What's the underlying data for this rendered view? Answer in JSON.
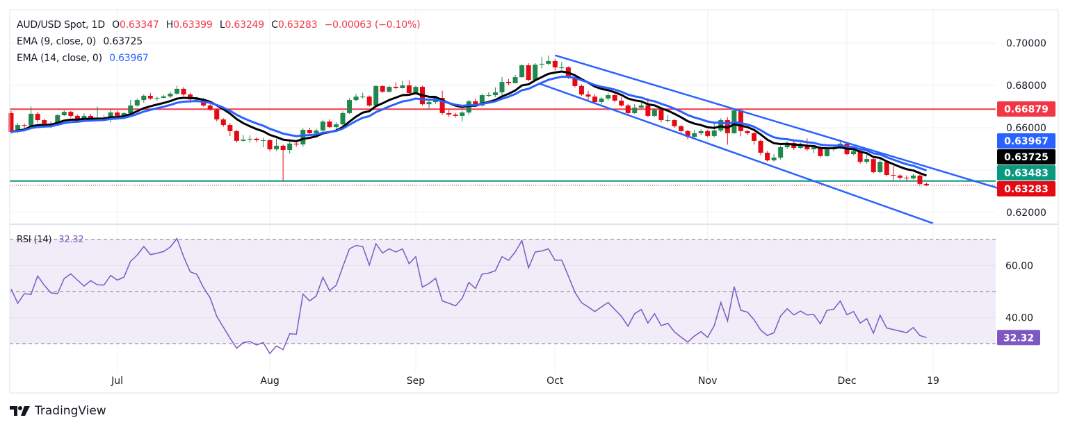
{
  "header": {
    "symbol": "AUD/USD Spot, 1D",
    "open_label": "O",
    "open": "0.63347",
    "high_label": "H",
    "high": "0.63399",
    "low_label": "L",
    "low": "0.63249",
    "close_label": "C",
    "close": "0.63283",
    "change": "−0.00063 (−0.10%)",
    "ema9_label": "EMA (9, close, 0)",
    "ema9_value": "0.63725",
    "ema14_label": "EMA (14, close, 0)",
    "ema14_value": "0.63967"
  },
  "rsi_legend": {
    "label": "RSI (14)",
    "value": "32.32"
  },
  "branding": {
    "logo_text": "TradingView"
  },
  "colors": {
    "up": "#22874f",
    "down": "#e50914",
    "ema9": "#000000",
    "ema14": "#2962ff",
    "resistance": "#f23645",
    "support": "#089981",
    "last_price": "#e50914",
    "channel": "#2962ff",
    "rsi": "#7e57c2",
    "rsi_band": "#f0ecf8"
  },
  "chart_data": [
    {
      "type": "candlestick",
      "title": "AUD/USD Spot, 1D",
      "ylim": [
        0.612,
        0.706
      ],
      "y_ticks": [
        {
          "value": 0.7,
          "label": "0.70000"
        },
        {
          "value": 0.68,
          "label": "0.68000"
        },
        {
          "value": 0.66,
          "label": "0.66000"
        },
        {
          "value": 0.62,
          "label": "0.62000"
        }
      ],
      "x_ticks": [
        {
          "bar": 16,
          "label": "Jul"
        },
        {
          "bar": 39,
          "label": "Aug"
        },
        {
          "bar": 61,
          "label": "Sep"
        },
        {
          "bar": 82,
          "label": "Oct"
        },
        {
          "bar": 105,
          "label": "Nov"
        },
        {
          "bar": 126,
          "label": "Dec"
        },
        {
          "bar": 139,
          "label": "19"
        }
      ],
      "grid": true,
      "indicators": [
        {
          "name": "EMA",
          "length": 9,
          "source": "close",
          "last": 0.63725,
          "color_key": "ema9"
        },
        {
          "name": "EMA",
          "length": 14,
          "source": "close",
          "last": 0.63967,
          "color_key": "ema14"
        }
      ],
      "horizontal_lines": [
        {
          "price": 0.66879,
          "label": "0.66879",
          "color_key": "resistance",
          "style": "solid"
        },
        {
          "price": 0.63483,
          "label": "0.63483",
          "color_key": "support",
          "style": "solid"
        },
        {
          "price": 0.63283,
          "label": "0.63283",
          "color_key": "last_price",
          "style": "dotted"
        }
      ],
      "trend_lines": [
        {
          "name": "channel-upper",
          "points": [
            [
              82,
              0.6942
            ],
            [
              149.5,
              0.6308
            ]
          ]
        },
        {
          "name": "channel-lower",
          "points": [
            [
              79.5,
              0.681
            ],
            [
              139,
              0.6148
            ]
          ]
        }
      ],
      "price_badges": [
        {
          "label": "0.66879",
          "color_key": "resistance"
        },
        {
          "label": "0.63967",
          "color_key": "ema14"
        },
        {
          "label": "0.63725",
          "color_key": "ema9"
        },
        {
          "label": "0.63483",
          "color_key": "support"
        },
        {
          "label": "0.63283",
          "color_key": "last_price"
        }
      ],
      "candles_format": [
        "open",
        "high",
        "low",
        "close"
      ],
      "candles": [
        [
          0.6669,
          0.668,
          0.6572,
          0.658
        ],
        [
          0.658,
          0.6622,
          0.6575,
          0.6613
        ],
        [
          0.6613,
          0.662,
          0.6598,
          0.661
        ],
        [
          0.661,
          0.67,
          0.6605,
          0.6666
        ],
        [
          0.6666,
          0.6675,
          0.6625,
          0.6636
        ],
        [
          0.6636,
          0.6642,
          0.66,
          0.662
        ],
        [
          0.662,
          0.663,
          0.6598,
          0.6617
        ],
        [
          0.6617,
          0.6665,
          0.6612,
          0.6659
        ],
        [
          0.6659,
          0.6682,
          0.6655,
          0.6675
        ],
        [
          0.6675,
          0.668,
          0.6648,
          0.6656
        ],
        [
          0.6656,
          0.6662,
          0.663,
          0.6639
        ],
        [
          0.6639,
          0.6668,
          0.6635,
          0.6656
        ],
        [
          0.6656,
          0.6665,
          0.6638,
          0.6643
        ],
        [
          0.6643,
          0.67,
          0.664,
          0.6646
        ],
        [
          0.6646,
          0.666,
          0.664,
          0.6646
        ],
        [
          0.6646,
          0.6685,
          0.6625,
          0.6672
        ],
        [
          0.6672,
          0.668,
          0.665,
          0.6656
        ],
        [
          0.6656,
          0.6673,
          0.664,
          0.6669
        ],
        [
          0.6669,
          0.6732,
          0.666,
          0.6705
        ],
        [
          0.6705,
          0.6738,
          0.67,
          0.6731
        ],
        [
          0.6731,
          0.6758,
          0.6718,
          0.6751
        ],
        [
          0.6751,
          0.6764,
          0.6732,
          0.6738
        ],
        [
          0.6738,
          0.6748,
          0.6728,
          0.6741
        ],
        [
          0.6741,
          0.6755,
          0.6738,
          0.6748
        ],
        [
          0.6748,
          0.677,
          0.674,
          0.6761
        ],
        [
          0.6761,
          0.6798,
          0.6755,
          0.6784
        ],
        [
          0.6784,
          0.6792,
          0.675,
          0.6757
        ],
        [
          0.6757,
          0.6765,
          0.6718,
          0.6734
        ],
        [
          0.6734,
          0.6746,
          0.672,
          0.6734
        ],
        [
          0.6734,
          0.674,
          0.67,
          0.6705
        ],
        [
          0.6705,
          0.6712,
          0.668,
          0.6685
        ],
        [
          0.6685,
          0.6692,
          0.663,
          0.6639
        ],
        [
          0.6639,
          0.6645,
          0.6605,
          0.6613
        ],
        [
          0.6613,
          0.6622,
          0.656,
          0.6584
        ],
        [
          0.6584,
          0.659,
          0.653,
          0.6538
        ],
        [
          0.6538,
          0.6565,
          0.6535,
          0.6544
        ],
        [
          0.6544,
          0.6565,
          0.653,
          0.6548
        ],
        [
          0.6548,
          0.6555,
          0.6532,
          0.6541
        ],
        [
          0.6541,
          0.6552,
          0.6508,
          0.6541
        ],
        [
          0.6541,
          0.6548,
          0.6488,
          0.6498
        ],
        [
          0.6498,
          0.6548,
          0.649,
          0.6515
        ],
        [
          0.6515,
          0.652,
          0.6348,
          0.6495
        ],
        [
          0.6495,
          0.6545,
          0.6478,
          0.6525
        ],
        [
          0.6525,
          0.654,
          0.651,
          0.6521
        ],
        [
          0.6521,
          0.6598,
          0.651,
          0.659
        ],
        [
          0.659,
          0.66,
          0.657,
          0.6574
        ],
        [
          0.6574,
          0.6596,
          0.6565,
          0.6587
        ],
        [
          0.6587,
          0.6638,
          0.658,
          0.6629
        ],
        [
          0.6629,
          0.664,
          0.6598,
          0.6603
        ],
        [
          0.6603,
          0.6625,
          0.6585,
          0.6616
        ],
        [
          0.6616,
          0.6678,
          0.661,
          0.6669
        ],
        [
          0.6669,
          0.674,
          0.6665,
          0.6731
        ],
        [
          0.6731,
          0.676,
          0.6725,
          0.6747
        ],
        [
          0.6747,
          0.6765,
          0.6738,
          0.6747
        ],
        [
          0.6747,
          0.6752,
          0.67,
          0.6705
        ],
        [
          0.6705,
          0.68,
          0.67,
          0.6797
        ],
        [
          0.6797,
          0.68,
          0.6765,
          0.677
        ],
        [
          0.677,
          0.6798,
          0.6765,
          0.6793
        ],
        [
          0.6793,
          0.6815,
          0.678,
          0.6787
        ],
        [
          0.6787,
          0.6822,
          0.6785,
          0.68
        ],
        [
          0.68,
          0.6825,
          0.676,
          0.6764
        ],
        [
          0.6764,
          0.6798,
          0.676,
          0.6793
        ],
        [
          0.6793,
          0.6798,
          0.6705,
          0.6711
        ],
        [
          0.6711,
          0.6735,
          0.669,
          0.6721
        ],
        [
          0.6721,
          0.6745,
          0.6712,
          0.6741
        ],
        [
          0.6741,
          0.6775,
          0.666,
          0.6669
        ],
        [
          0.6669,
          0.6685,
          0.665,
          0.6662
        ],
        [
          0.6662,
          0.667,
          0.6648,
          0.6656
        ],
        [
          0.6656,
          0.668,
          0.663,
          0.6672
        ],
        [
          0.6672,
          0.6732,
          0.666,
          0.6725
        ],
        [
          0.6725,
          0.6738,
          0.6698,
          0.6705
        ],
        [
          0.6705,
          0.676,
          0.67,
          0.6754
        ],
        [
          0.6754,
          0.6768,
          0.6745,
          0.6754
        ],
        [
          0.6754,
          0.679,
          0.6745,
          0.6767
        ],
        [
          0.6767,
          0.684,
          0.6755,
          0.6816
        ],
        [
          0.6816,
          0.683,
          0.68,
          0.681
        ],
        [
          0.681,
          0.685,
          0.681,
          0.6839
        ],
        [
          0.6839,
          0.69,
          0.6835,
          0.6895
        ],
        [
          0.6895,
          0.6905,
          0.682,
          0.6826
        ],
        [
          0.6826,
          0.6905,
          0.682,
          0.6898
        ],
        [
          0.6898,
          0.6935,
          0.688,
          0.6902
        ],
        [
          0.6902,
          0.6942,
          0.6895,
          0.6915
        ],
        [
          0.6915,
          0.6925,
          0.687,
          0.6885
        ],
        [
          0.6885,
          0.691,
          0.6875,
          0.6885
        ],
        [
          0.6885,
          0.689,
          0.683,
          0.6839
        ],
        [
          0.6839,
          0.6845,
          0.679,
          0.6797
        ],
        [
          0.6797,
          0.6805,
          0.675,
          0.6757
        ],
        [
          0.6757,
          0.6775,
          0.673,
          0.6747
        ],
        [
          0.6747,
          0.676,
          0.6715,
          0.6721
        ],
        [
          0.6721,
          0.6745,
          0.671,
          0.6738
        ],
        [
          0.6738,
          0.6765,
          0.673,
          0.6754
        ],
        [
          0.6754,
          0.677,
          0.672,
          0.6728
        ],
        [
          0.6728,
          0.6745,
          0.67,
          0.6705
        ],
        [
          0.6705,
          0.6712,
          0.666,
          0.6669
        ],
        [
          0.6669,
          0.6712,
          0.6665,
          0.6695
        ],
        [
          0.6695,
          0.6718,
          0.669,
          0.6705
        ],
        [
          0.6705,
          0.674,
          0.665,
          0.6656
        ],
        [
          0.6656,
          0.6692,
          0.665,
          0.6685
        ],
        [
          0.6685,
          0.669,
          0.6625,
          0.6636
        ],
        [
          0.6636,
          0.666,
          0.6625,
          0.6636
        ],
        [
          0.6636,
          0.664,
          0.66,
          0.6607
        ],
        [
          0.6607,
          0.6612,
          0.6578,
          0.6584
        ],
        [
          0.6584,
          0.659,
          0.6545,
          0.6557
        ],
        [
          0.6557,
          0.659,
          0.6545,
          0.6574
        ],
        [
          0.6574,
          0.6592,
          0.6565,
          0.6584
        ],
        [
          0.6584,
          0.659,
          0.6555,
          0.6561
        ],
        [
          0.6561,
          0.662,
          0.6555,
          0.6587
        ],
        [
          0.6587,
          0.6645,
          0.658,
          0.6636
        ],
        [
          0.6636,
          0.665,
          0.652,
          0.6574
        ],
        [
          0.6574,
          0.6688,
          0.657,
          0.6682
        ],
        [
          0.6682,
          0.669,
          0.656,
          0.6584
        ],
        [
          0.6584,
          0.659,
          0.6565,
          0.6574
        ],
        [
          0.6574,
          0.658,
          0.652,
          0.6538
        ],
        [
          0.6538,
          0.6545,
          0.647,
          0.6482
        ],
        [
          0.6482,
          0.649,
          0.644,
          0.6446
        ],
        [
          0.6446,
          0.6475,
          0.644,
          0.6459
        ],
        [
          0.6459,
          0.6515,
          0.645,
          0.6508
        ],
        [
          0.6508,
          0.6535,
          0.65,
          0.6528
        ],
        [
          0.6528,
          0.6545,
          0.6495,
          0.6505
        ],
        [
          0.6505,
          0.653,
          0.65,
          0.6515
        ],
        [
          0.6515,
          0.655,
          0.649,
          0.6498
        ],
        [
          0.6498,
          0.6515,
          0.648,
          0.6508
        ],
        [
          0.6508,
          0.6512,
          0.646,
          0.6466
        ],
        [
          0.6466,
          0.6505,
          0.6462,
          0.6498
        ],
        [
          0.6498,
          0.652,
          0.649,
          0.6505
        ],
        [
          0.6505,
          0.6535,
          0.65,
          0.6525
        ],
        [
          0.6525,
          0.653,
          0.647,
          0.6475
        ],
        [
          0.6475,
          0.651,
          0.647,
          0.6489
        ],
        [
          0.6489,
          0.6495,
          0.643,
          0.6439
        ],
        [
          0.6439,
          0.6478,
          0.643,
          0.6452
        ],
        [
          0.6452,
          0.6458,
          0.6385,
          0.639
        ],
        [
          0.639,
          0.646,
          0.6385,
          0.6439
        ],
        [
          0.6439,
          0.6445,
          0.637,
          0.6377
        ],
        [
          0.6377,
          0.642,
          0.635,
          0.6374
        ],
        [
          0.6374,
          0.638,
          0.6355,
          0.6364
        ],
        [
          0.6364,
          0.6375,
          0.635,
          0.6361
        ],
        [
          0.6361,
          0.6382,
          0.6355,
          0.6374
        ],
        [
          0.6374,
          0.638,
          0.633,
          0.63347
        ],
        [
          0.63347,
          0.63399,
          0.63249,
          0.63283
        ]
      ]
    },
    {
      "type": "line",
      "title": "RSI (14)",
      "ylim": [
        20,
        75
      ],
      "y_ticks": [
        {
          "value": 60,
          "label": "60.00"
        },
        {
          "value": 40,
          "label": "40.00"
        }
      ],
      "bands": {
        "upper": 70,
        "middle": 50,
        "lower": 30
      },
      "last_label": "32.32",
      "values": [
        51.0,
        45.5,
        49.2,
        48.9,
        56.0,
        52.4,
        49.5,
        49.2,
        55.0,
        56.8,
        54.4,
        52.1,
        54.2,
        52.6,
        52.5,
        56.2,
        54.4,
        55.5,
        61.6,
        64.0,
        67.3,
        64.2,
        64.7,
        65.4,
        67.1,
        70.4,
        63.4,
        57.6,
        56.6,
        51.5,
        47.6,
        40.5,
        36.3,
        32.1,
        28.2,
        30.4,
        30.8,
        29.5,
        30.4,
        26.2,
        29.1,
        27.7,
        33.8,
        33.6,
        49.0,
        46.4,
        48.3,
        55.5,
        50.3,
        52.4,
        59.5,
        66.4,
        67.7,
        67.3,
        60.2,
        68.4,
        64.8,
        66.4,
        65.2,
        66.4,
        60.7,
        63.4,
        51.7,
        53.1,
        55.1,
        46.4,
        45.5,
        44.5,
        47.4,
        53.5,
        51.2,
        56.7,
        57.1,
        58.0,
        63.4,
        62.0,
        65.2,
        69.6,
        59.1,
        65.2,
        65.6,
        66.4,
        62.0,
        62.1,
        56.0,
        49.7,
        45.7,
        44.1,
        42.3,
        44.1,
        45.8,
        43.1,
        40.5,
        36.7,
        41.5,
        43.1,
        37.9,
        41.5,
        36.9,
        37.8,
        34.5,
        32.5,
        30.6,
        32.9,
        34.6,
        32.4,
        36.9,
        45.8,
        38.7,
        51.9,
        42.8,
        42.1,
        39.2,
        35.2,
        33.1,
        34.2,
        40.6,
        43.4,
        41.0,
        42.5,
        41.0,
        41.2,
        37.6,
        42.8,
        43.2,
        46.4,
        41.1,
        42.3,
        37.9,
        39.6,
        34.0,
        40.9,
        36.0,
        35.4,
        34.8,
        34.2,
        36.2,
        33.1,
        32.32
      ]
    }
  ]
}
